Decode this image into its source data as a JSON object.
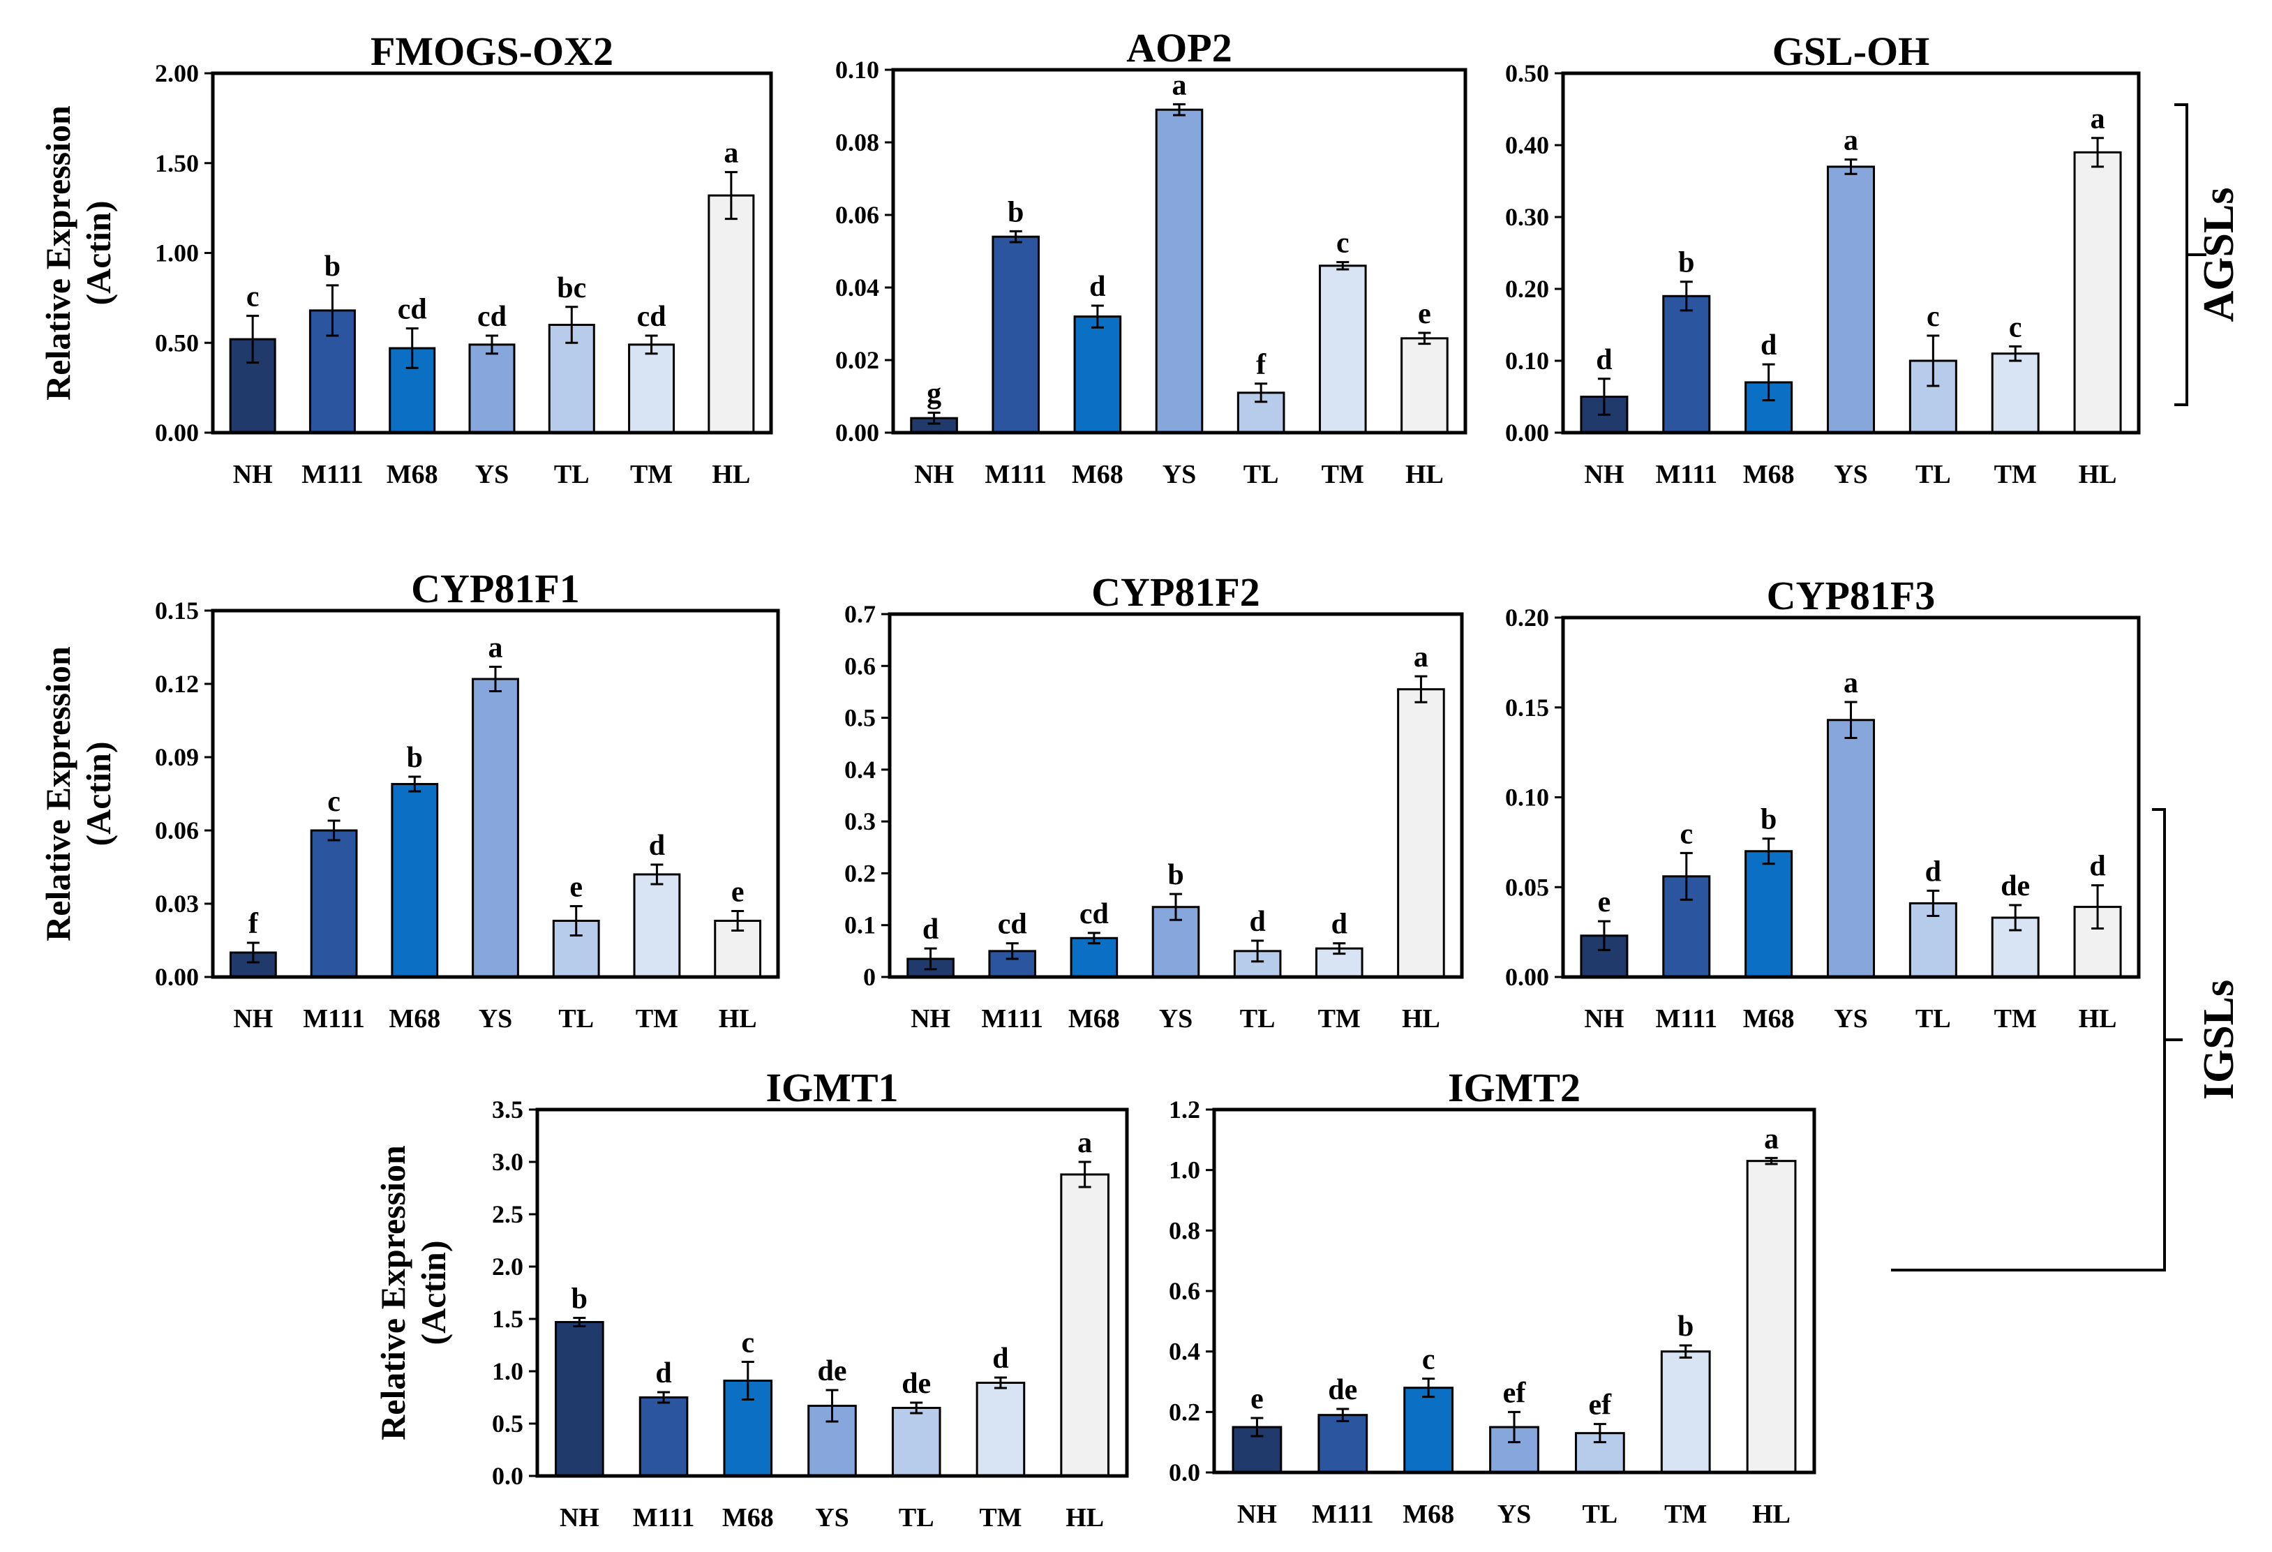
{
  "chart_data": [
    {
      "type": "bar",
      "title": "FMOGS-OX2",
      "ylabel": "Relative Expression (Actin)",
      "categories": [
        "NH",
        "M111",
        "M68",
        "YS",
        "TL",
        "TM",
        "HL"
      ],
      "values": [
        0.52,
        0.68,
        0.47,
        0.49,
        0.6,
        0.49,
        1.32
      ],
      "errors": [
        0.13,
        0.14,
        0.11,
        0.05,
        0.1,
        0.05,
        0.13
      ],
      "letters": [
        "c",
        "b",
        "cd",
        "cd",
        "bc",
        "cd",
        "a"
      ],
      "ylim": [
        0,
        2.0
      ],
      "yticks": [
        "0.00",
        "0.50",
        "1.00",
        "1.50",
        "2.00"
      ]
    },
    {
      "type": "bar",
      "title": "AOP2",
      "ylabel": "",
      "categories": [
        "NH",
        "M111",
        "M68",
        "YS",
        "TL",
        "TM",
        "HL"
      ],
      "values": [
        0.004,
        0.054,
        0.032,
        0.089,
        0.011,
        0.046,
        0.026
      ],
      "errors": [
        0.0015,
        0.0015,
        0.003,
        0.0015,
        0.0025,
        0.001,
        0.0015
      ],
      "letters": [
        "g",
        "b",
        "d",
        "a",
        "f",
        "c",
        "e"
      ],
      "ylim": [
        0,
        0.1
      ],
      "yticks": [
        "0.00",
        "0.02",
        "0.04",
        "0.06",
        "0.08",
        "0.10"
      ]
    },
    {
      "type": "bar",
      "title": "GSL-OH",
      "ylabel": "",
      "categories": [
        "NH",
        "M111",
        "M68",
        "YS",
        "TL",
        "TM",
        "HL"
      ],
      "values": [
        0.05,
        0.19,
        0.07,
        0.37,
        0.1,
        0.11,
        0.39
      ],
      "errors": [
        0.025,
        0.02,
        0.025,
        0.01,
        0.035,
        0.01,
        0.02
      ],
      "letters": [
        "d",
        "b",
        "d",
        "a",
        "c",
        "c",
        "a"
      ],
      "ylim": [
        0,
        0.5
      ],
      "yticks": [
        "0.00",
        "0.10",
        "0.20",
        "0.30",
        "0.40",
        "0.50"
      ]
    },
    {
      "type": "bar",
      "title": "CYP81F1",
      "ylabel": "Relative Expression (Actin)",
      "categories": [
        "NH",
        "M111",
        "M68",
        "YS",
        "TL",
        "TM",
        "HL"
      ],
      "values": [
        0.01,
        0.06,
        0.079,
        0.122,
        0.023,
        0.042,
        0.023
      ],
      "errors": [
        0.004,
        0.004,
        0.003,
        0.005,
        0.006,
        0.004,
        0.004
      ],
      "letters": [
        "f",
        "c",
        "b",
        "a",
        "e",
        "d",
        "e"
      ],
      "ylim": [
        0,
        0.15
      ],
      "yticks": [
        "0.00",
        "0.03",
        "0.06",
        "0.09",
        "0.12",
        "0.15"
      ]
    },
    {
      "type": "bar",
      "title": "CYP81F2",
      "ylabel": "",
      "categories": [
        "NH",
        "M111",
        "M68",
        "YS",
        "TL",
        "TM",
        "HL"
      ],
      "values": [
        0.035,
        0.05,
        0.075,
        0.135,
        0.05,
        0.055,
        0.555
      ],
      "errors": [
        0.02,
        0.015,
        0.01,
        0.025,
        0.02,
        0.01,
        0.025
      ],
      "letters": [
        "d",
        "cd",
        "cd",
        "b",
        "d",
        "d",
        "a"
      ],
      "ylim": [
        0,
        0.7
      ],
      "yticks": [
        "0",
        "0.1",
        "0.2",
        "0.3",
        "0.4",
        "0.5",
        "0.6",
        "0.7"
      ]
    },
    {
      "type": "bar",
      "title": "CYP81F3",
      "ylabel": "",
      "categories": [
        "NH",
        "M111",
        "M68",
        "YS",
        "TL",
        "TM",
        "HL"
      ],
      "values": [
        0.023,
        0.056,
        0.07,
        0.143,
        0.041,
        0.033,
        0.039
      ],
      "errors": [
        0.008,
        0.013,
        0.007,
        0.01,
        0.007,
        0.007,
        0.012
      ],
      "letters": [
        "e",
        "c",
        "b",
        "a",
        "d",
        "de",
        "d"
      ],
      "ylim": [
        0,
        0.2
      ],
      "yticks": [
        "0.00",
        "0.05",
        "0.10",
        "0.15",
        "0.20"
      ]
    },
    {
      "type": "bar",
      "title": "IGMT1",
      "ylabel": "Relative Expression (Actin)",
      "categories": [
        "NH",
        "M111",
        "M68",
        "YS",
        "TL",
        "TM",
        "HL"
      ],
      "values": [
        1.47,
        0.75,
        0.91,
        0.67,
        0.65,
        0.89,
        2.88
      ],
      "errors": [
        0.04,
        0.05,
        0.18,
        0.15,
        0.05,
        0.05,
        0.12
      ],
      "letters": [
        "b",
        "d",
        "c",
        "de",
        "de",
        "d",
        "a"
      ],
      "ylim": [
        0,
        3.5
      ],
      "yticks": [
        "0.0",
        "0.5",
        "1.0",
        "1.5",
        "2.0",
        "2.5",
        "3.0",
        "3.5"
      ]
    },
    {
      "type": "bar",
      "title": "IGMT2",
      "ylabel": "",
      "categories": [
        "NH",
        "M111",
        "M68",
        "YS",
        "TL",
        "TM",
        "HL"
      ],
      "values": [
        0.15,
        0.19,
        0.28,
        0.15,
        0.13,
        0.4,
        1.03
      ],
      "errors": [
        0.03,
        0.02,
        0.03,
        0.05,
        0.03,
        0.02,
        0.01
      ],
      "letters": [
        "e",
        "de",
        "c",
        "ef",
        "ef",
        "b",
        "a"
      ],
      "ylim": [
        0,
        1.2
      ],
      "yticks": [
        "0.0",
        "0.2",
        "0.4",
        "0.6",
        "0.8",
        "1.0",
        "1.2"
      ]
    }
  ],
  "groups": {
    "agsl": "AGSLs",
    "igsl": "IGSLs"
  },
  "colors": {
    "NH": "#1f3a6b",
    "M111": "#2b559e",
    "M68": "#0b6fc4",
    "YS": "#86a6dc",
    "TL": "#b7cbeb",
    "TM": "#d8e3f3",
    "HL": "#f1f1f1",
    "stroke": "#000000"
  }
}
